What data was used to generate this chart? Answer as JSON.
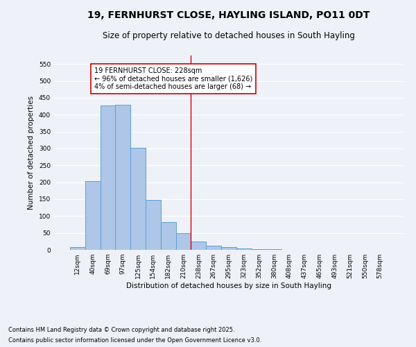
{
  "title": "19, FERNHURST CLOSE, HAYLING ISLAND, PO11 0DT",
  "subtitle": "Size of property relative to detached houses in South Hayling",
  "xlabel": "Distribution of detached houses by size in South Hayling",
  "ylabel": "Number of detached properties",
  "bar_color": "#aec6e8",
  "bar_edge_color": "#5a9fd4",
  "categories": [
    "12sqm",
    "40sqm",
    "69sqm",
    "97sqm",
    "125sqm",
    "154sqm",
    "182sqm",
    "210sqm",
    "238sqm",
    "267sqm",
    "295sqm",
    "323sqm",
    "352sqm",
    "380sqm",
    "408sqm",
    "437sqm",
    "465sqm",
    "493sqm",
    "521sqm",
    "550sqm",
    "578sqm"
  ],
  "values": [
    8,
    204,
    428,
    430,
    302,
    148,
    82,
    50,
    25,
    12,
    8,
    5,
    3,
    2,
    1,
    0,
    0,
    0,
    0,
    0,
    0
  ],
  "ylim": [
    0,
    575
  ],
  "yticks": [
    0,
    50,
    100,
    150,
    200,
    250,
    300,
    350,
    400,
    450,
    500,
    550
  ],
  "vline_x": 7.5,
  "vline_color": "#cc0000",
  "annotation_title": "19 FERNHURST CLOSE: 228sqm",
  "annotation_line1": "← 96% of detached houses are smaller (1,626)",
  "annotation_line2": "4% of semi-detached houses are larger (68) →",
  "footnote1": "Contains HM Land Registry data © Crown copyright and database right 2025.",
  "footnote2": "Contains public sector information licensed under the Open Government Licence v3.0.",
  "background_color": "#eef2f8",
  "grid_color": "#ffffff",
  "title_fontsize": 10,
  "subtitle_fontsize": 8.5,
  "axis_label_fontsize": 7.5,
  "tick_fontsize": 6.5,
  "annotation_fontsize": 7,
  "footnote_fontsize": 6
}
